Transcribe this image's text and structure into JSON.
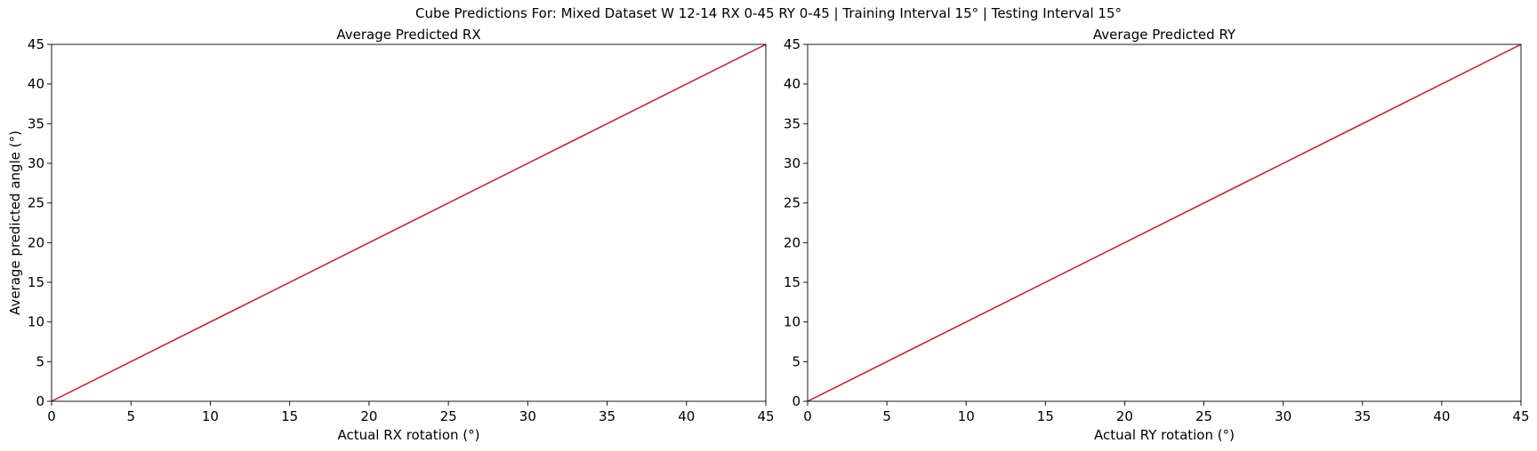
{
  "figure": {
    "suptitle": "Cube Predictions For: Mixed Dataset W 12-14 RX 0-45 RY 0-45 | Training Interval 15° | Testing Interval 15°"
  },
  "colors": {
    "line_primary": "#1f77b4",
    "line_secondary": "#d62728",
    "axes": "#000000",
    "background": "#ffffff"
  },
  "chart_data": [
    {
      "type": "line",
      "title": "Average Predicted RX",
      "xlabel": "Actual RX rotation (°)",
      "ylabel": "Average predicted angle (°)",
      "xlim": [
        0,
        45
      ],
      "ylim": [
        0,
        45
      ],
      "xticks": [
        0,
        5,
        10,
        15,
        20,
        25,
        30,
        35,
        40,
        45
      ],
      "yticks": [
        0,
        5,
        10,
        15,
        20,
        25,
        30,
        35,
        40,
        45
      ],
      "grid": false,
      "series": [
        {
          "x": [
            0,
            15,
            30,
            45
          ],
          "y": [
            0,
            15,
            30,
            45
          ],
          "color": "#1f77b4"
        },
        {
          "x": [
            0,
            15,
            30,
            45
          ],
          "y": [
            0,
            15,
            30,
            45
          ],
          "color": "#d62728"
        }
      ]
    },
    {
      "type": "line",
      "title": "Average Predicted RY",
      "xlabel": "Actual RY rotation (°)",
      "ylabel": "",
      "xlim": [
        0,
        45
      ],
      "ylim": [
        0,
        45
      ],
      "xticks": [
        0,
        5,
        10,
        15,
        20,
        25,
        30,
        35,
        40,
        45
      ],
      "yticks": [
        0,
        5,
        10,
        15,
        20,
        25,
        30,
        35,
        40,
        45
      ],
      "grid": false,
      "series": [
        {
          "x": [
            0,
            15,
            30,
            45
          ],
          "y": [
            0,
            15,
            30,
            45
          ],
          "color": "#1f77b4"
        },
        {
          "x": [
            0,
            15,
            30,
            45
          ],
          "y": [
            0,
            15,
            30,
            45
          ],
          "color": "#d62728"
        }
      ]
    }
  ]
}
